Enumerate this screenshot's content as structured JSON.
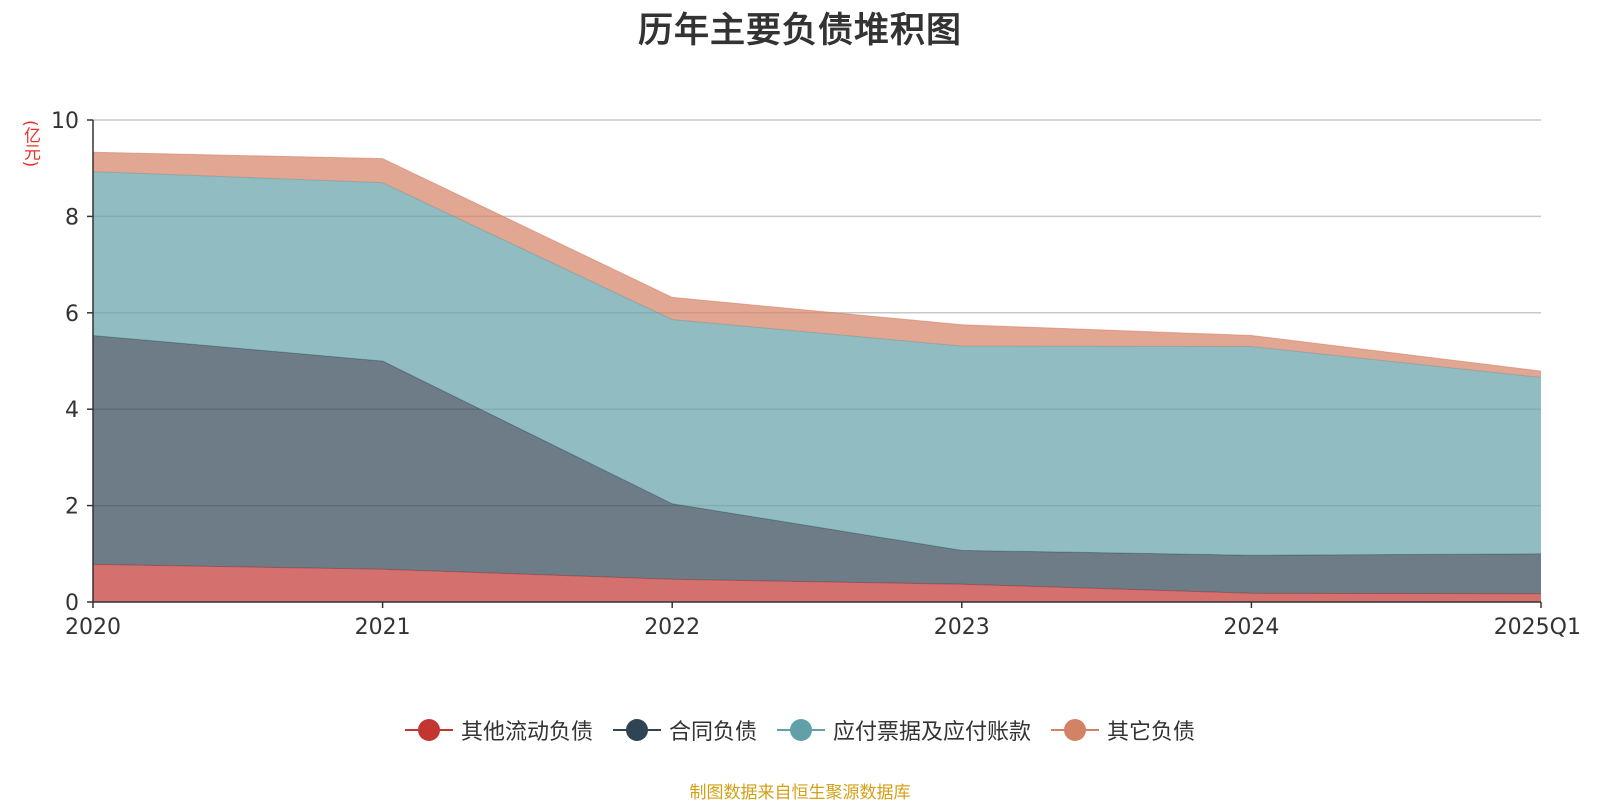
{
  "chart_data": {
    "type": "area",
    "stacked": true,
    "title": "历年主要负债堆积图",
    "ylabel": "(亿元)",
    "xlabel": "",
    "categories": [
      "2020",
      "2021",
      "2022",
      "2023",
      "2024",
      "2025Q1"
    ],
    "ylim": [
      0,
      10
    ],
    "yticks": [
      0,
      2,
      4,
      6,
      8,
      10
    ],
    "grid": true,
    "legend_position": "bottom",
    "series": [
      {
        "name": "其他流动负债",
        "color": "#c23531",
        "values": [
          0.78,
          0.68,
          0.47,
          0.37,
          0.18,
          0.17
        ]
      },
      {
        "name": "合同负债",
        "color": "#2f4554",
        "values": [
          4.75,
          4.32,
          1.57,
          0.7,
          0.79,
          0.83
        ]
      },
      {
        "name": "应付票据及应付账款",
        "color": "#61a0a8",
        "values": [
          3.4,
          3.7,
          3.82,
          4.24,
          4.33,
          3.66
        ]
      },
      {
        "name": "其它负债",
        "color": "#d48265",
        "values": [
          0.4,
          0.5,
          0.46,
          0.44,
          0.23,
          0.13
        ]
      }
    ],
    "source": "制图数据来自恒生聚源数据库"
  }
}
